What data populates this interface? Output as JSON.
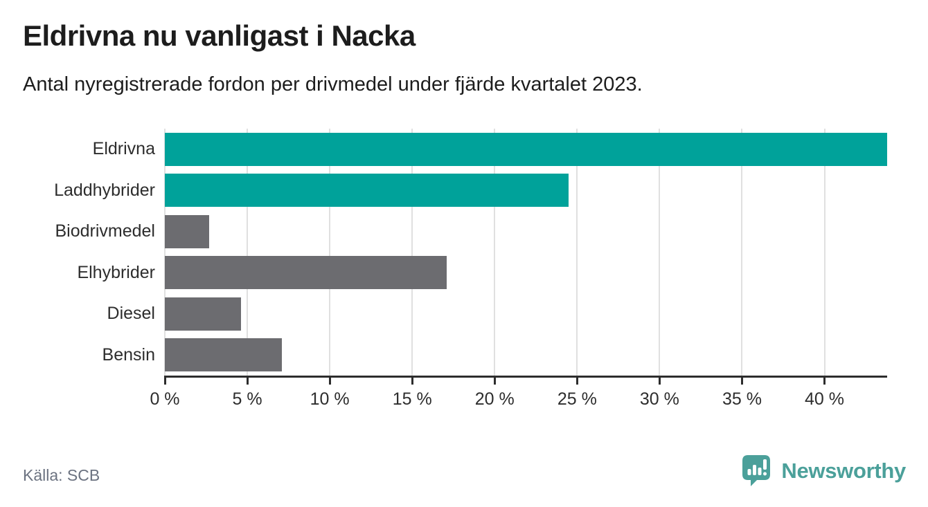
{
  "chart_data": {
    "type": "bar",
    "orientation": "horizontal",
    "title": "Eldrivna nu vanligast i Nacka",
    "subtitle": "Antal nyregistrerade fordon per drivmedel under fjärde kvartalet 2023.",
    "categories": [
      "Eldrivna",
      "Laddhybrider",
      "Biodrivmedel",
      "Elhybrider",
      "Diesel",
      "Bensin"
    ],
    "values": [
      43.8,
      24.5,
      2.7,
      17.1,
      4.6,
      7.1
    ],
    "unit": "%",
    "bar_colors": [
      "#00a29a",
      "#00a29a",
      "#6c6c70",
      "#6c6c70",
      "#6c6c70",
      "#6c6c70"
    ],
    "xlabel": "",
    "ylabel": "",
    "xlim": [
      0,
      43.8
    ],
    "x_ticks": [
      0,
      5,
      10,
      15,
      20,
      25,
      30,
      35,
      40
    ],
    "x_tick_labels": [
      "0 %",
      "5 %",
      "10 %",
      "15 %",
      "20 %",
      "25 %",
      "30 %",
      "35 %",
      "40 %"
    ],
    "grid": true,
    "legend": false
  },
  "footer": {
    "source": "Källa: SCB",
    "logo_text": "Newsworthy"
  },
  "colors": {
    "accent_teal": "#00a29a",
    "neutral_gray": "#6c6c70",
    "grid": "#e0e0e0",
    "axis": "#2d2d2d",
    "text_dark": "#1d1d1d",
    "text_muted": "#6b7280",
    "logo_teal": "#4ba09a"
  }
}
